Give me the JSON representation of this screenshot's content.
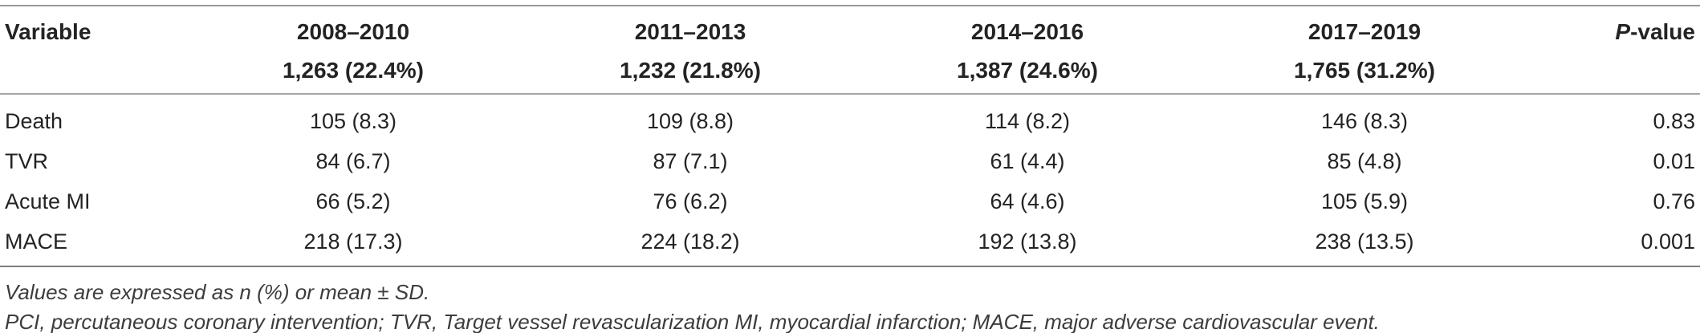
{
  "table": {
    "columns": {
      "variable_header": "Variable",
      "p_value_italic": "P",
      "p_value_rest": "-value",
      "periods": [
        {
          "label": "2008–2010",
          "n": "1,263 (22.4%)"
        },
        {
          "label": "2011–2013",
          "n": "1,232 (21.8%)"
        },
        {
          "label": "2014–2016",
          "n": "1,387 (24.6%)"
        },
        {
          "label": "2017–2019",
          "n": "1,765 (31.2%)"
        }
      ]
    },
    "rows": [
      {
        "variable": "Death",
        "values": [
          "105 (8.3)",
          "109 (8.8)",
          "114 (8.2)",
          "146 (8.3)"
        ],
        "p": "0.83"
      },
      {
        "variable": "TVR",
        "values": [
          "84 (6.7)",
          "87 (7.1)",
          "61 (4.4)",
          "85 (4.8)"
        ],
        "p": "0.01"
      },
      {
        "variable": "Acute MI",
        "values": [
          "66 (5.2)",
          "76 (6.2)",
          "64 (4.6)",
          "105 (5.9)"
        ],
        "p": "0.76"
      },
      {
        "variable": "MACE",
        "values": [
          "218 (17.3)",
          "224 (18.2)",
          "192 (13.8)",
          "238 (13.5)"
        ],
        "p": "0.001"
      }
    ],
    "footnotes": [
      "Values are expressed as n (%) or mean ± SD.",
      "PCI, percutaneous coronary intervention; TVR, Target vessel revascularization MI, myocardial infarction; MACE, major adverse cardiovascular event."
    ]
  },
  "colors": {
    "text": "#232323",
    "rule_top": "#979797",
    "rule_under_header": "#a6a6a6",
    "rule_bottom": "#7e7e7e",
    "footnote_text": "#3c3c3c"
  }
}
